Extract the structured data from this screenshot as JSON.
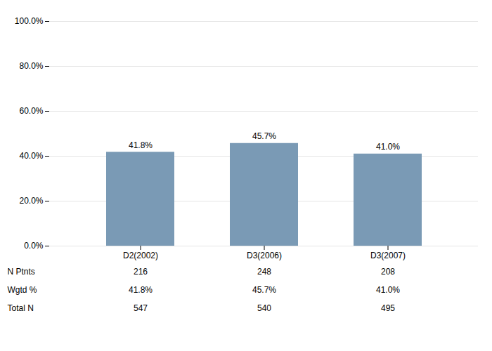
{
  "chart_data": {
    "type": "bar",
    "categories": [
      "D2(2002)",
      "D3(2006)",
      "D3(2007)"
    ],
    "values": [
      41.8,
      45.7,
      41.0
    ],
    "value_labels": [
      "41.8%",
      "45.7%",
      "41.0%"
    ],
    "data_labels": true,
    "color": "#7a9ab5",
    "ylim": [
      0,
      100
    ],
    "yticks": [
      {
        "value": 0,
        "label": "0.0%"
      },
      {
        "value": 20,
        "label": "20.0%"
      },
      {
        "value": 40,
        "label": "40.0%"
      },
      {
        "value": 60,
        "label": "60.0%"
      },
      {
        "value": 80,
        "label": "80.0%"
      },
      {
        "value": 100,
        "label": "100.0%"
      }
    ],
    "grid": true,
    "table_rows": [
      "N Ptnts",
      "Wgtd %",
      "Total N"
    ],
    "table_data": [
      [
        "216",
        "248",
        "208"
      ],
      [
        "41.8%",
        "45.7%",
        "41.0%"
      ],
      [
        "547",
        "540",
        "495"
      ]
    ]
  }
}
